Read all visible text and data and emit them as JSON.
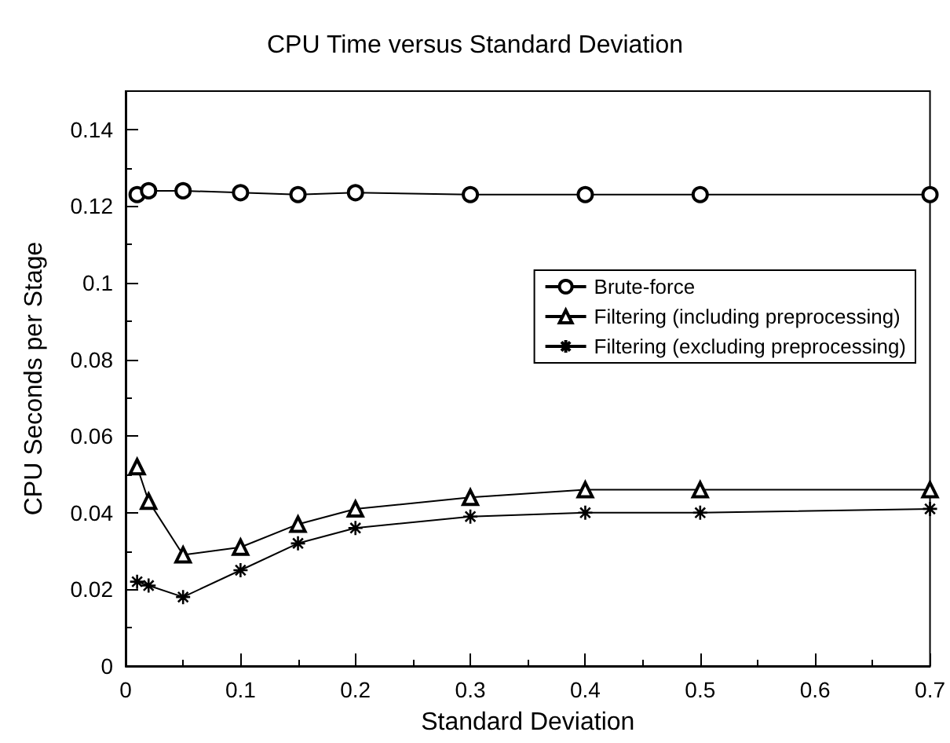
{
  "chart_data": {
    "type": "line",
    "title": "CPU Time versus Standard Deviation",
    "xlabel": "Standard Deviation",
    "ylabel": "CPU Seconds per Stage",
    "x": [
      0.01,
      0.02,
      0.05,
      0.1,
      0.15,
      0.2,
      0.3,
      0.4,
      0.5,
      0.7
    ],
    "series": [
      {
        "name": "Brute-force",
        "color": "#000000",
        "marker": "circle",
        "values": [
          0.123,
          0.124,
          0.124,
          0.1235,
          0.123,
          0.1235,
          0.123,
          0.123,
          0.123,
          0.123
        ]
      },
      {
        "name": "Filtering (including preprocessing)",
        "color": "#000000",
        "marker": "triangle",
        "values": [
          0.052,
          0.043,
          0.029,
          0.031,
          0.037,
          0.041,
          0.044,
          0.046,
          0.046,
          0.046
        ]
      },
      {
        "name": "Filtering (excluding preprocessing)",
        "color": "#000000",
        "marker": "cross",
        "values": [
          0.022,
          0.021,
          0.018,
          0.025,
          0.032,
          0.036,
          0.039,
          0.04,
          0.04,
          0.041
        ]
      }
    ],
    "xlim": [
      0,
      0.7
    ],
    "xticks": [
      0,
      0.1,
      0.2,
      0.3,
      0.4,
      0.5,
      0.6,
      0.7
    ],
    "ylim": [
      0,
      0.15
    ],
    "yticks": [
      0,
      0.02,
      0.04,
      0.06,
      0.08,
      0.1,
      0.12,
      0.14
    ],
    "grid": false,
    "legend": "right",
    "line_style": "solid"
  }
}
